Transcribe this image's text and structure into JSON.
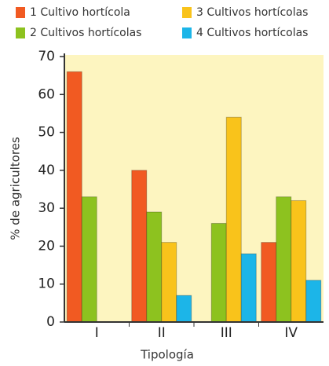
{
  "chart_data": {
    "type": "bar",
    "x_label": "Tipología",
    "y_label": "% de agricultores",
    "categories": [
      "I",
      "II",
      "III",
      "IV"
    ],
    "series": [
      {
        "name": "1 Cultivo hortícola",
        "color": "#f15a22",
        "values": [
          66,
          40,
          0,
          21
        ]
      },
      {
        "name": "2 Cultivos hortícolas",
        "color": "#8dc21f",
        "values": [
          33,
          29,
          26,
          33
        ]
      },
      {
        "name": "3 Cultivos hortícolas",
        "color": "#f9c31b",
        "values": [
          0,
          21,
          54,
          32
        ]
      },
      {
        "name": "4 Cultivos hortícolas",
        "color": "#1cb5e8",
        "values": [
          0,
          7,
          18,
          11
        ]
      }
    ],
    "ylim": [
      0,
      70
    ],
    "yticks": [
      0,
      10,
      20,
      30,
      40,
      50,
      60,
      70
    ],
    "grid": false,
    "plot_background": "#fdf5c0"
  }
}
